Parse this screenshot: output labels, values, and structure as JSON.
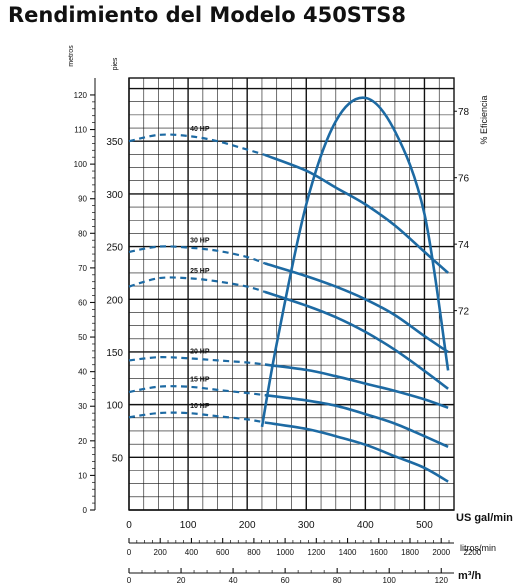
{
  "chart_data": {
    "type": "line",
    "title": "Rendimiento del Modelo 450STS8",
    "x_axes": {
      "usgpm": {
        "label": "US gal/min",
        "range": [
          0,
          550
        ],
        "ticks": [
          "0",
          "100",
          "200",
          "300",
          "400",
          "500"
        ]
      },
      "lpm": {
        "label": "litros/min",
        "range": [
          0,
          2081.9
        ],
        "ticks": [
          "0",
          "200",
          "400",
          "600",
          "800",
          "1000",
          "1200",
          "1400",
          "1600",
          "1800",
          "2000",
          "2200"
        ]
      },
      "m3h": {
        "label": "m³/h",
        "range": [
          0,
          124.9
        ],
        "ticks": [
          "0",
          "20",
          "40",
          "60",
          "80",
          "100",
          "120"
        ]
      }
    },
    "y_axes": {
      "metros": {
        "label": "metros",
        "range": [
          0,
          124.9
        ],
        "ticks": [
          "0",
          "10",
          "20",
          "30",
          "40",
          "50",
          "60",
          "70",
          "80",
          "90",
          "100",
          "110",
          "120"
        ]
      },
      "pies": {
        "label": "pies",
        "range": [
          0,
          410
        ],
        "ticks": [
          "50",
          "100",
          "150",
          "200",
          "250",
          "300",
          "350"
        ]
      },
      "eficiencia": {
        "label": "% Eficiencia",
        "range": [
          66,
          79
        ],
        "ticks": [
          "72",
          "74",
          "76",
          "78"
        ]
      }
    },
    "grid": true,
    "series": [
      {
        "name": "40 HP",
        "x": [
          0,
          50,
          100,
          150,
          200,
          230,
          300,
          350,
          400,
          450,
          500,
          540
        ],
        "y": [
          350,
          356,
          355,
          350,
          342,
          337,
          322,
          306,
          290,
          270,
          245,
          225
        ],
        "dashed_until": 230
      },
      {
        "name": "30 HP",
        "x": [
          0,
          50,
          100,
          150,
          200,
          230,
          300,
          350,
          400,
          450,
          500,
          540
        ],
        "y": [
          245,
          250,
          249,
          246,
          240,
          234,
          222,
          212,
          200,
          185,
          165,
          150
        ],
        "dashed_until": 230
      },
      {
        "name": "25 HP",
        "x": [
          0,
          50,
          100,
          150,
          200,
          230,
          300,
          350,
          400,
          450,
          500,
          540
        ],
        "y": [
          212,
          220,
          220,
          217,
          212,
          207,
          194,
          183,
          169,
          152,
          132,
          115
        ],
        "dashed_until": 230
      },
      {
        "name": "20 HP",
        "x": [
          0,
          50,
          100,
          150,
          200,
          230,
          300,
          350,
          400,
          450,
          500,
          540
        ],
        "y": [
          142,
          145,
          144,
          142,
          140,
          138,
          133,
          127,
          120,
          113,
          105,
          97
        ],
        "dashed_until": 230
      },
      {
        "name": "15 HP",
        "x": [
          0,
          50,
          100,
          150,
          200,
          230,
          300,
          350,
          400,
          450,
          500,
          540
        ],
        "y": [
          112,
          117,
          117,
          114,
          111,
          109,
          104,
          99,
          91,
          82,
          70,
          60
        ],
        "dashed_until": 230
      },
      {
        "name": "10 HP",
        "x": [
          0,
          50,
          100,
          150,
          200,
          230,
          300,
          350,
          400,
          450,
          500,
          540
        ],
        "y": [
          88,
          92,
          92,
          89,
          86,
          83,
          77,
          70,
          62,
          51,
          40,
          27
        ],
        "dashed_until": 230
      },
      {
        "name": "% Eficiencia",
        "axis": "eficiencia",
        "x": [
          225,
          250,
          300,
          350,
          400,
          450,
          500,
          540
        ],
        "y": [
          68.5,
          71.0,
          75.2,
          77.7,
          78.4,
          77.4,
          74.9,
          70.2
        ]
      }
    ]
  },
  "colors": {
    "curve": "#1d6aa3",
    "grid": "#111111"
  }
}
